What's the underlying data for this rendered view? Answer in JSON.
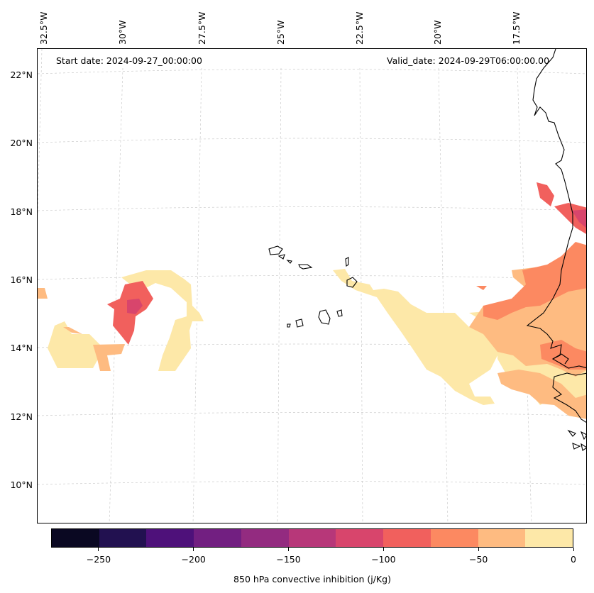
{
  "figure": {
    "start_date": "Start date: 2024-09-27_00:00:00",
    "valid_date": "Valid_date: 2024-09-29T06:00:00.00",
    "longitude_labels": [
      "32.5°W",
      "30°W",
      "27.5°W",
      "25°W",
      "22.5°W",
      "20°W",
      "17.5°W"
    ],
    "latitude_labels": [
      "22°N",
      "20°N",
      "18°N",
      "16°N",
      "14°N",
      "12°N",
      "10°N"
    ]
  },
  "chart_data": {
    "type": "heatmap",
    "title": "",
    "variable": "850 hPa convective inhibition",
    "colorbar_label": "850 hPa convective inhibition (j/Kg)",
    "units": "j/Kg",
    "levels": [
      -275,
      -250,
      -225,
      -200,
      -175,
      -150,
      -125,
      -100,
      -75,
      -50,
      -25,
      0
    ],
    "tick_values": [
      -250,
      -200,
      -150,
      -100,
      -50,
      0
    ],
    "tick_labels": [
      "−250",
      "−200",
      "−150",
      "−100",
      "−50",
      "0"
    ],
    "colors": [
      "#0a0822",
      "#221150",
      "#4e117a",
      "#721f81",
      "#932b80",
      "#b73779",
      "#d8456c",
      "#f1605d",
      "#fc8961",
      "#febb81",
      "#fde8a8"
    ],
    "lon_range": [
      -33,
      -16
    ],
    "lat_range": [
      9,
      22.8
    ],
    "features": [
      "Cape Verde islands",
      "West African coastline (Senegal, Gambia, Guinea-Bissau)"
    ]
  }
}
